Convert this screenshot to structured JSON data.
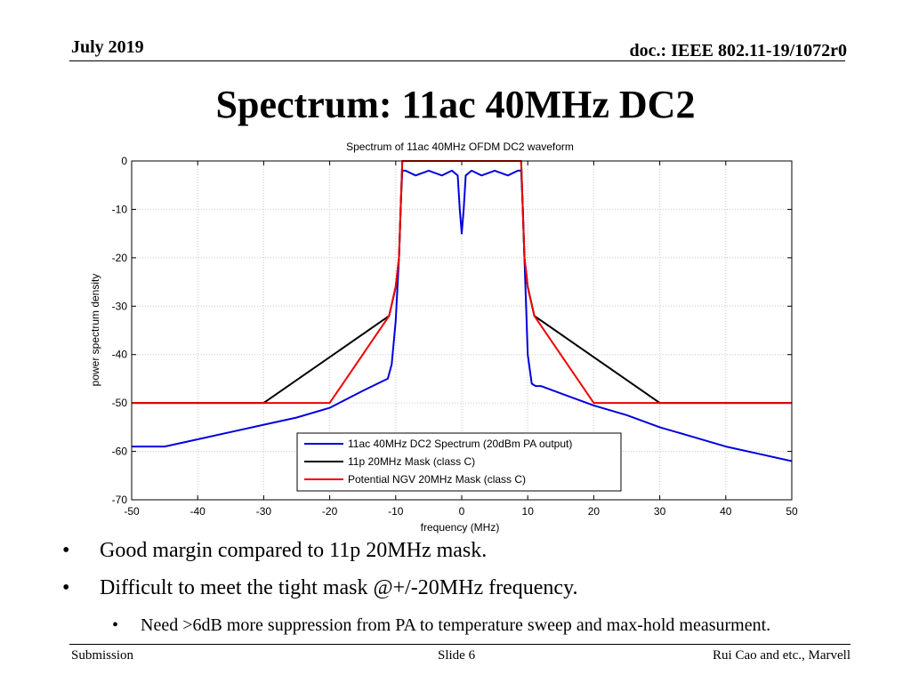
{
  "header": {
    "date": "July 2019",
    "doc": "doc.: IEEE 802.11-19/1072r0"
  },
  "slide_title": "Spectrum: 11ac 40MHz DC2",
  "bullets": [
    {
      "text": "Good margin compared to 11p 20MHz mask.",
      "level": 1
    },
    {
      "text": "Difficult to meet the tight mask @+/-20MHz frequency.",
      "level": 1
    },
    {
      "text": "Need >6dB more suppression from PA to temperature sweep and max-hold measurment.",
      "level": 2
    }
  ],
  "bullet_glyph": "•",
  "footer": {
    "left": "Submission",
    "center": "Slide 6",
    "right": "Rui Cao and etc., Marvell"
  },
  "chart_data": {
    "type": "line",
    "title": "Spectrum of 11ac 40MHz OFDM DC2 waveform",
    "xlabel": "frequency (MHz)",
    "ylabel": "power spectrum density",
    "xlim": [
      -50,
      50
    ],
    "ylim": [
      -70,
      0
    ],
    "xticks": [
      -50,
      -40,
      -30,
      -20,
      -10,
      0,
      10,
      20,
      30,
      40,
      50
    ],
    "yticks": [
      0,
      -10,
      -20,
      -30,
      -40,
      -50,
      -60,
      -70
    ],
    "grid": true,
    "legend_position": "bottom-center",
    "series": [
      {
        "name": "11ac 40MHz DC2 Spectrum (20dBm PA output)",
        "color": "#0000dd",
        "x": [
          -50,
          -45,
          -40,
          -35,
          -30,
          -25,
          -20,
          -15,
          -12,
          -11.2,
          -10.6,
          -10,
          -9.5,
          -9.2,
          -9,
          -8.5,
          -7,
          -5,
          -3,
          -1.5,
          -0.6,
          -0.3,
          0,
          0.3,
          0.6,
          1.5,
          3,
          5,
          7,
          8.5,
          9,
          9.2,
          9.5,
          10,
          10.6,
          11.2,
          12,
          15,
          20,
          25,
          30,
          35,
          40,
          45,
          50
        ],
        "y": [
          -59,
          -59,
          -57.5,
          -56,
          -54.5,
          -53,
          -51,
          -47.5,
          -45.5,
          -45,
          -42,
          -33,
          -20,
          -8,
          -2,
          -2,
          -3,
          -2,
          -3,
          -2,
          -3,
          -10,
          -15,
          -10,
          -3,
          -2,
          -3,
          -2,
          -3,
          -2,
          -2,
          -8,
          -20,
          -40,
          -46,
          -46.5,
          -46.5,
          -48,
          -50.5,
          -52.5,
          -55,
          -57,
          -59,
          -60.5,
          -62
        ]
      },
      {
        "name": "11p 20MHz Mask (class C)",
        "color": "#000000",
        "x": [
          -50,
          -30,
          -11,
          -10,
          -9.5,
          -9,
          9,
          9.5,
          10,
          11,
          30,
          50
        ],
        "y": [
          -50,
          -50,
          -32,
          -26,
          -20,
          0,
          0,
          -20,
          -26,
          -32,
          -50,
          -50
        ]
      },
      {
        "name": "Potential NGV 20MHz Mask (class C)",
        "color": "#ee0000",
        "x": [
          -50,
          -20,
          -11,
          -10,
          -9.5,
          -9,
          9,
          9.5,
          10,
          11,
          20,
          50
        ],
        "y": [
          -50,
          -50,
          -32,
          -26,
          -20,
          0,
          0,
          -20,
          -26,
          -32,
          -50,
          -50
        ]
      }
    ]
  }
}
